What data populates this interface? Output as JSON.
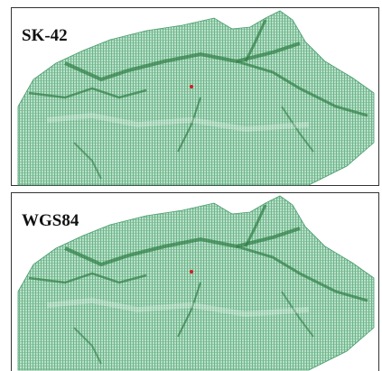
{
  "panels": [
    {
      "label": "SK-42"
    },
    {
      "label": "WGS84"
    }
  ]
}
